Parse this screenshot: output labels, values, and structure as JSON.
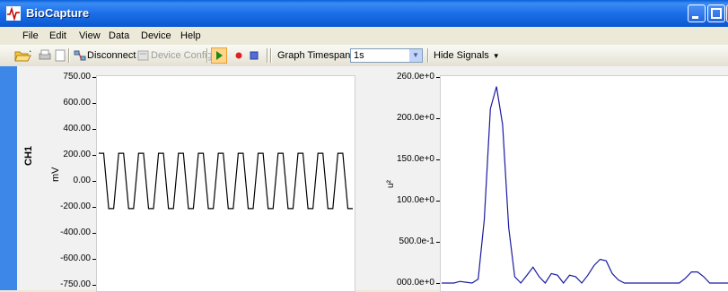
{
  "window": {
    "title": "BioCapture"
  },
  "menu": {
    "items": [
      "File",
      "Edit",
      "View",
      "Data",
      "Device",
      "Help"
    ]
  },
  "toolbar": {
    "disconnect_label": "Disconnect",
    "device_config_label": "Device Config",
    "graph_timespan_label": "Graph Timespan",
    "graph_timespan_value": "1s",
    "hide_signals_label": "Hide Signals"
  },
  "channel": {
    "label": "CH1",
    "unit_left": "mV",
    "unit_right": "u²"
  },
  "left_axis": {
    "ticks": [
      "750.00",
      "600.00",
      "400.00",
      "200.00",
      "0.00",
      "-200.00",
      "-400.00",
      "-600.00",
      "-750.00"
    ]
  },
  "right_axis": {
    "ticks": [
      "260.0e+0",
      "200.0e+0",
      "150.0e+0",
      "100.0e+0",
      "500.0e-1",
      "000.0e+0"
    ]
  },
  "colors": {
    "time_signal": "#000000",
    "spectrum_signal": "#1a1aa0"
  },
  "chart_data": [
    {
      "type": "line",
      "ylabel": "mV",
      "ylim": [
        -750,
        750
      ],
      "series": [
        {
          "values": [
            200,
            200,
            -200,
            -200,
            200,
            200,
            -200,
            -200,
            200,
            200,
            -200,
            -200,
            200,
            200,
            -200,
            -200,
            200,
            200,
            -200,
            -200,
            200,
            200,
            -200,
            -200,
            200,
            200,
            -200,
            -200,
            200,
            200,
            -200,
            -200,
            200,
            200,
            -200,
            -200,
            200,
            200,
            -200,
            -200,
            200,
            200,
            -200,
            -200,
            200,
            200,
            -200,
            -200,
            200,
            200,
            -200,
            -200
          ]
        }
      ]
    },
    {
      "type": "line",
      "ylabel": "u²",
      "ylim": [
        0,
        260
      ],
      "series": [
        {
          "values": [
            0,
            0,
            0,
            2,
            1,
            0,
            5,
            80,
            220,
            248,
            200,
            70,
            8,
            0,
            10,
            20,
            8,
            0,
            12,
            10,
            0,
            10,
            8,
            0,
            10,
            22,
            30,
            28,
            12,
            4,
            0,
            0,
            0,
            0,
            0,
            0,
            0,
            0,
            0,
            0,
            6,
            14,
            14,
            8,
            0,
            0,
            0,
            0
          ]
        }
      ]
    }
  ]
}
